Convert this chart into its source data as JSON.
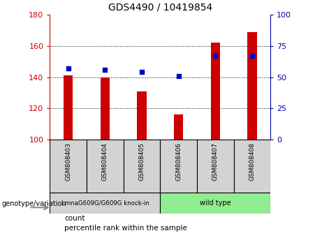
{
  "title": "GDS4490 / 10419854",
  "samples": [
    "GSM808403",
    "GSM808404",
    "GSM808405",
    "GSM808406",
    "GSM808407",
    "GSM808408"
  ],
  "counts": [
    141,
    140,
    131,
    116,
    162,
    169
  ],
  "percentile_ranks": [
    57,
    56,
    54,
    51,
    67,
    67
  ],
  "ymin": 100,
  "ymax": 180,
  "yticks": [
    100,
    120,
    140,
    160,
    180
  ],
  "y2min": 0,
  "y2max": 100,
  "y2ticks": [
    0,
    25,
    50,
    75,
    100
  ],
  "bar_color": "#cc0000",
  "dot_color": "#0000cc",
  "bar_width": 0.25,
  "group1_label": "LmnaG609G/G609G knock-in",
  "group2_label": "wild type",
  "group_bg_color_1": "#d3d3d3",
  "group_bg_color_2": "#90ee90",
  "left_axis_color": "#cc0000",
  "right_axis_color": "#0000aa",
  "legend_count_label": "count",
  "legend_percentile_label": "percentile rank within the sample",
  "genotype_label": "genotype/variation"
}
